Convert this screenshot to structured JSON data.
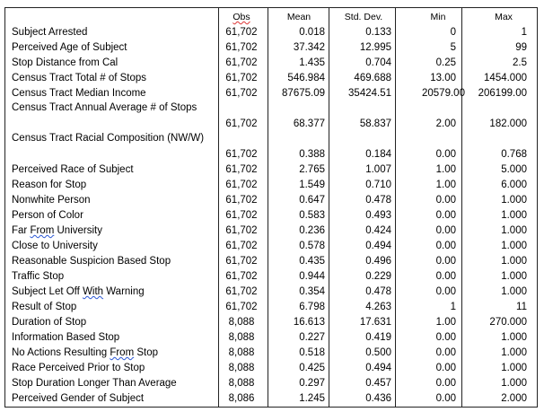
{
  "table": {
    "headers": {
      "obs": "Obs",
      "mean": "Mean",
      "sd": "Std. Dev.",
      "min": "Min",
      "max": "Max"
    },
    "rows": [
      {
        "label": "Subject Arrested",
        "obs": "61,702",
        "mean": "0.018",
        "sd": "0.133",
        "min": "0",
        "max": "1"
      },
      {
        "label": "Perceived Age of Subject",
        "obs": "61,702",
        "mean": "37.342",
        "sd": "12.995",
        "min": "5",
        "max": "99"
      },
      {
        "label": "Stop Distance from Cal",
        "obs": "61,702",
        "mean": "1.435",
        "sd": "0.704",
        "min": "0.25",
        "max": "2.5"
      },
      {
        "label": "Census Tract Total # of Stops",
        "obs": "61,702",
        "mean": "546.984",
        "sd": "469.688",
        "min": "13.00",
        "max": "1454.000"
      },
      {
        "label": "Census Tract Median Income",
        "obs": "61,702",
        "mean": "87675.09",
        "sd": "35424.51",
        "min": "20579.00",
        "max": "206199.00"
      },
      {
        "label": "Census Tract Annual Average # of Stops",
        "obs": "61,702",
        "mean": "68.377",
        "sd": "58.837",
        "min": "2.00",
        "max": "182.000"
      },
      {
        "label": "Census Tract Racial Composition (NW/W)",
        "obs": "61,702",
        "mean": "0.388",
        "sd": "0.184",
        "min": "0.00",
        "max": "0.768"
      },
      {
        "label": "Perceived Race of Subject",
        "obs": "61,702",
        "mean": "2.765",
        "sd": "1.007",
        "min": "1.00",
        "max": "5.000"
      },
      {
        "label": "Reason for Stop",
        "obs": "61,702",
        "mean": "1.549",
        "sd": "0.710",
        "min": "1.00",
        "max": "6.000"
      },
      {
        "label": "Nonwhite Person",
        "obs": "61,702",
        "mean": "0.647",
        "sd": "0.478",
        "min": "0.00",
        "max": "1.000"
      },
      {
        "label": "Person of Color",
        "obs": "61,702",
        "mean": "0.583",
        "sd": "0.493",
        "min": "0.00",
        "max": "1.000"
      },
      {
        "label": "Far From University",
        "obs": "61,702",
        "mean": "0.236",
        "sd": "0.424",
        "min": "0.00",
        "max": "1.000"
      },
      {
        "label": "Close to University",
        "obs": "61,702",
        "mean": "0.578",
        "sd": "0.494",
        "min": "0.00",
        "max": "1.000"
      },
      {
        "label": "Reasonable Suspicion Based Stop",
        "obs": "61,702",
        "mean": "0.435",
        "sd": "0.496",
        "min": "0.00",
        "max": "1.000"
      },
      {
        "label": "Traffic Stop",
        "obs": "61,702",
        "mean": "0.944",
        "sd": "0.229",
        "min": "0.00",
        "max": "1.000"
      },
      {
        "label": "Subject Let Off With Warning",
        "obs": "61,702",
        "mean": "0.354",
        "sd": "0.478",
        "min": "0.00",
        "max": "1.000"
      },
      {
        "label": "Result of Stop",
        "obs": "61,702",
        "mean": "6.798",
        "sd": "4.263",
        "min": "1",
        "max": "11"
      },
      {
        "label": "Duration of Stop",
        "obs": "8,088",
        "mean": "16.613",
        "sd": "17.631",
        "min": "1.00",
        "max": "270.000"
      },
      {
        "label": "Information Based Stop",
        "obs": "8,088",
        "mean": "0.227",
        "sd": "0.419",
        "min": "0.00",
        "max": "1.000"
      },
      {
        "label": "No Actions Resulting From Stop",
        "obs": "8,088",
        "mean": "0.518",
        "sd": "0.500",
        "min": "0.00",
        "max": "1.000"
      },
      {
        "label": "Race Perceived Prior to Stop",
        "obs": "8,088",
        "mean": "0.425",
        "sd": "0.494",
        "min": "0.00",
        "max": "1.000"
      },
      {
        "label": "Stop Duration Longer Than Average",
        "obs": "8,088",
        "mean": "0.297",
        "sd": "0.457",
        "min": "0.00",
        "max": "1.000"
      },
      {
        "label": "Perceived Gender of Subject",
        "obs": "8,086",
        "mean": "1.245",
        "sd": "0.436",
        "min": "0.00",
        "max": "2.000"
      }
    ]
  }
}
